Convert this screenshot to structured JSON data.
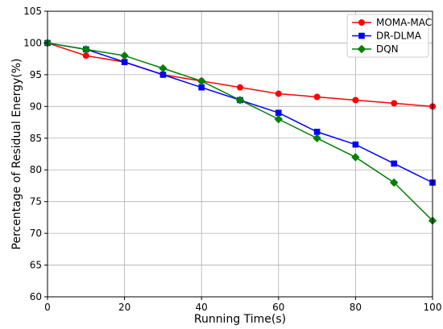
{
  "chart_data": {
    "type": "line",
    "title": "",
    "xlabel": "Running Time(s)",
    "ylabel": "Percentage of Residual Energy(%)",
    "xlim": [
      0,
      100
    ],
    "ylim": [
      60,
      105
    ],
    "xticks": [
      0,
      20,
      40,
      60,
      80,
      100
    ],
    "yticks": [
      60,
      65,
      70,
      75,
      80,
      85,
      90,
      95,
      100,
      105
    ],
    "grid": true,
    "legend_position": "top-right",
    "x": [
      0,
      10,
      20,
      30,
      40,
      50,
      60,
      70,
      80,
      90,
      100
    ],
    "series": [
      {
        "name": "MOMA-MAC",
        "color": "#ff0000",
        "marker": "circle",
        "values": [
          100,
          98,
          97,
          95,
          94,
          93,
          92,
          91.5,
          91,
          90.5,
          90
        ]
      },
      {
        "name": "DR-DLMA",
        "color": "#0000ff",
        "marker": "square",
        "values": [
          100,
          99,
          97,
          95,
          93,
          91,
          89,
          86,
          84,
          81,
          78
        ]
      },
      {
        "name": "DQN",
        "color": "#008000",
        "marker": "diamond",
        "values": [
          100,
          99,
          98,
          96,
          94,
          91,
          88,
          85,
          82,
          78,
          72
        ]
      }
    ]
  }
}
